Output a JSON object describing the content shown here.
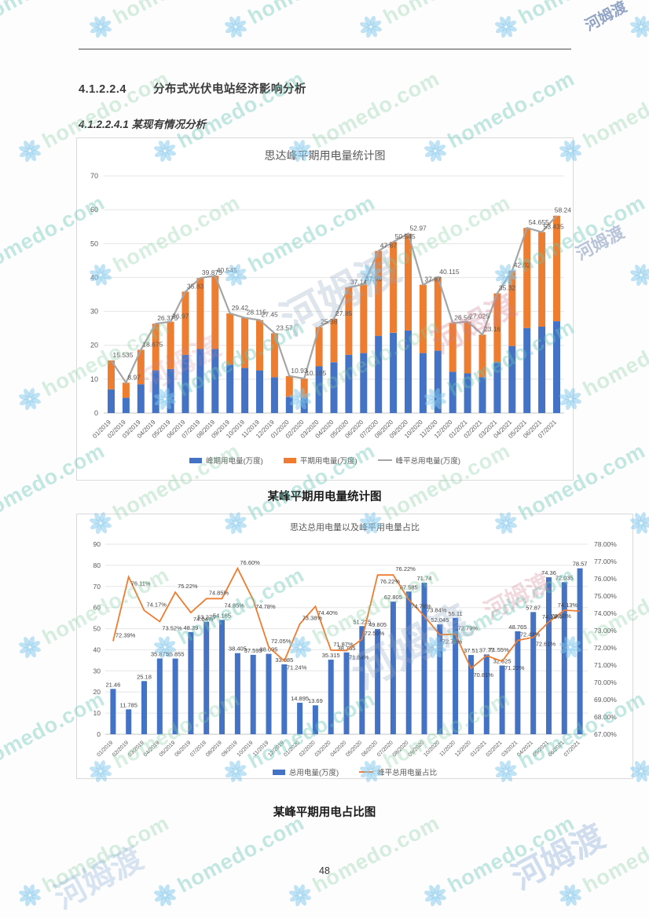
{
  "watermark": {
    "brand": "homedo.com",
    "brand_cn": "河姆渡"
  },
  "headings": {
    "h1_number": "4.1.2.2.4",
    "h1_title": "分布式光伏电站经济影响分析",
    "h2": "4.1.2.2.4.1 某现有情况分析"
  },
  "captions": {
    "chart1": "某峰平期用电量统计图",
    "chart2": "某峰平期用电占比图"
  },
  "page": {
    "number": "48"
  },
  "colors": {
    "bar_blue": "#4472C4",
    "bar_orange": "#ED7D31",
    "line_gray": "#A5A5A5",
    "line_orange": "#ED7D31",
    "label_gray": "#595959"
  },
  "chart_data": [
    {
      "type": "bar",
      "subtype": "stacked-bars-with-total-line",
      "title": "思达峰平期用电量统计图",
      "categories": [
        "01/2019",
        "02/2019",
        "03/2019",
        "04/2019",
        "05/2019",
        "06/2019",
        "07/2019",
        "08/2019",
        "09/2019",
        "10/2019",
        "11/2019",
        "12/2019",
        "01/2020",
        "02/2020",
        "03/2020",
        "04/2020",
        "05/2020",
        "06/2020",
        "07/2020",
        "08/2020",
        "09/2020",
        "10/2020",
        "11/2020",
        "12/2020",
        "01/2021",
        "02/2021",
        "03/2021",
        "04/2021",
        "05/2021",
        "06/2021",
        "07/2021"
      ],
      "series": [
        {
          "name": "峰期用电量(万度)",
          "render": "bar-stack",
          "color": "#4472C4",
          "values": [
            7.0,
            4.5,
            8.5,
            12.6,
            13.0,
            17.2,
            18.9,
            18.9,
            14.3,
            13.3,
            12.6,
            10.6,
            4.8,
            4.6,
            13.8,
            15.0,
            17.2,
            17.7,
            22.8,
            23.7,
            24.4,
            17.7,
            18.4,
            12.2,
            11.7,
            10.6,
            15.0,
            19.8,
            25.1,
            25.5,
            27.1
          ]
        },
        {
          "name": "平期用电量(万度)",
          "render": "bar-stack",
          "color": "#ED7D31",
          "values": [
            8.535,
            4.47,
            10.175,
            13.775,
            13.97,
            18.63,
            20.975,
            21.645,
            15.12,
            14.815,
            14.85,
            12.97,
            6.13,
            5.585,
            11.58,
            12.85,
            19.94,
            20.26,
            25.07,
            26.845,
            28.57,
            20.17,
            21.715,
            14.36,
            15.325,
            12.56,
            20.32,
            22.22,
            29.555,
            27.935,
            31.14
          ]
        },
        {
          "name": "峰平总用电量(万度)",
          "render": "line",
          "color": "#A5A5A5",
          "labeled": true,
          "values": [
            15.535,
            8.97,
            18.675,
            26.375,
            26.97,
            35.83,
            39.875,
            40.545,
            29.42,
            28.115,
            27.45,
            23.57,
            10.93,
            10.185,
            25.38,
            27.85,
            37.14,
            37.96,
            47.87,
            50.545,
            52.97,
            37.87,
            40.115,
            26.56,
            27.025,
            23.16,
            35.32,
            42.02,
            54.655,
            53.435,
            58.24
          ]
        }
      ],
      "ylim": [
        0,
        70
      ],
      "ytick": 10,
      "grid": true,
      "legend_position": "bottom"
    },
    {
      "type": "bar",
      "subtype": "bars-with-percent-line-dual-axis",
      "title": "思达总用电量以及峰平用电量占比",
      "categories": [
        "01/2019",
        "02/2019",
        "03/2019",
        "04/2019",
        "05/2019",
        "06/2019",
        "07/2019",
        "08/2019",
        "09/2019",
        "10/2019",
        "11/2019",
        "12/2019",
        "01/2020",
        "02/2020",
        "03/2020",
        "04/2020",
        "05/2020",
        "06/2020",
        "07/2020",
        "08/2020",
        "09/2020",
        "10/2020",
        "11/2020",
        "12/2020",
        "01/2021",
        "02/2021",
        "03/2021",
        "04/2021",
        "05/2021",
        "06/2021",
        "07/2021"
      ],
      "series": [
        {
          "name": "总用电量(万度)",
          "render": "bar",
          "color": "#4472C4",
          "axis": "left",
          "labeled": true,
          "values": [
            21.46,
            11.785,
            25.18,
            35.875,
            35.855,
            48.39,
            53.275,
            54.165,
            38.405,
            37.595,
            38.095,
            33.085,
            14.895,
            13.69,
            35.315,
            38.765,
            51.225,
            49.805,
            62.805,
            67.585,
            71.74,
            52.045,
            55.11,
            37.51,
            37.77,
            32.525,
            48.765,
            57.87,
            74.36,
            72.035,
            78.57
          ]
        },
        {
          "name": "峰平总用电量占比",
          "render": "line",
          "color": "#ED7D31",
          "axis": "right",
          "labeled": true,
          "label_format": "percent2",
          "values": [
            72.39,
            76.11,
            74.17,
            73.52,
            75.22,
            74.04,
            74.85,
            74.85,
            76.6,
            74.78,
            72.05,
            71.24,
            73.38,
            74.4,
            71.87,
            71.84,
            72.5,
            76.22,
            76.22,
            74.79,
            73.84,
            72.76,
            72.79,
            70.81,
            71.55,
            71.22,
            72.43,
            72.61,
            73.5,
            74.18,
            74.13
          ]
        }
      ],
      "ylim_left": [
        0,
        90
      ],
      "ytick_left": 10,
      "ylim_right": [
        67,
        78
      ],
      "ytick_right": 1,
      "right_tick_format": "percent2",
      "grid": true,
      "legend_position": "bottom"
    }
  ]
}
